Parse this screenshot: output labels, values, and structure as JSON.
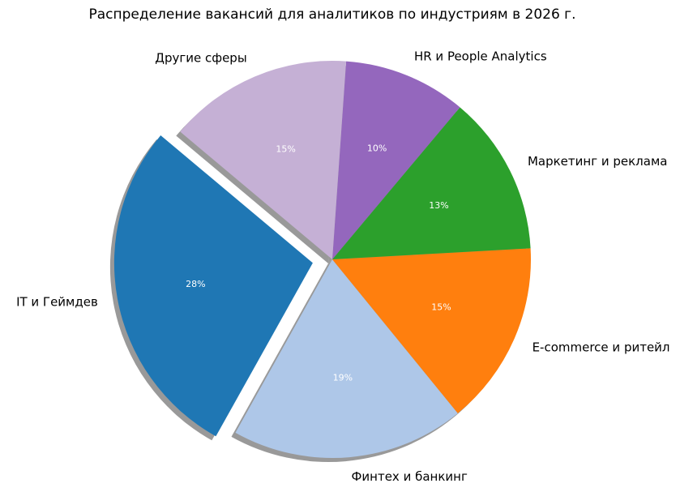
{
  "chart_data": {
    "type": "pie",
    "title": "Распределение вакансий для аналитиков по индустриям в 2026 г.",
    "categories": [
      "IT и Геймдев",
      "Финтех и банкинг",
      "E-commerce и ритейл",
      "Маркетинг и реклама",
      "HR и People Analytics",
      "Другие сферы"
    ],
    "values": [
      28,
      19,
      15,
      13,
      10,
      15
    ],
    "value_labels": [
      "28%",
      "19%",
      "15%",
      "13%",
      "10%",
      "15%"
    ],
    "colors": [
      "#1f77b4",
      "#aec7e8",
      "#ff7f0e",
      "#2ca02c",
      "#9467bd",
      "#c5b0d5"
    ],
    "explode": [
      0.1,
      0,
      0,
      0,
      0,
      0
    ],
    "startangle": 140,
    "shadow": true
  }
}
